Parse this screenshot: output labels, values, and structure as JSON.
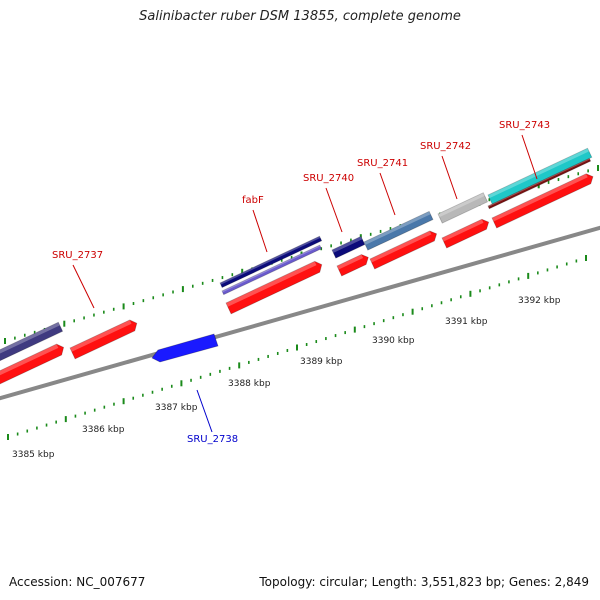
{
  "title": "Salinibacter ruber DSM 13855, complete genome",
  "footer": {
    "accession": "Accession: NC_007677",
    "summary": "Topology: circular; Length: 3,551,823 bp; Genes: 2,849"
  },
  "colors": {
    "cds_forward": "#ff1010",
    "cds_reverse": "#1a1aff",
    "backbone": "#888888",
    "tick": "#1a8a1a",
    "label_forward": "#cc0000",
    "label_reverse": "#0000cc"
  },
  "scale_labels": [
    "3385 kbp",
    "3386 kbp",
    "3387 kbp",
    "3388 kbp",
    "3389 kbp",
    "3390 kbp",
    "3391 kbp",
    "3392 kbp"
  ],
  "gene_labels": [
    {
      "id": "SRU_2737",
      "strand": "forward"
    },
    {
      "id": "fabF",
      "strand": "forward"
    },
    {
      "id": "SRU_2740",
      "strand": "forward"
    },
    {
      "id": "SRU_2741",
      "strand": "forward"
    },
    {
      "id": "SRU_2742",
      "strand": "forward"
    },
    {
      "id": "SRU_2743",
      "strand": "forward"
    },
    {
      "id": "SRU_2738",
      "strand": "reverse"
    }
  ],
  "cog_colors": [
    "#3f3a80",
    "#0b0b7a",
    "#6a5acd",
    "#4a78aa",
    "#b8b8b8",
    "#1fc8c8"
  ]
}
